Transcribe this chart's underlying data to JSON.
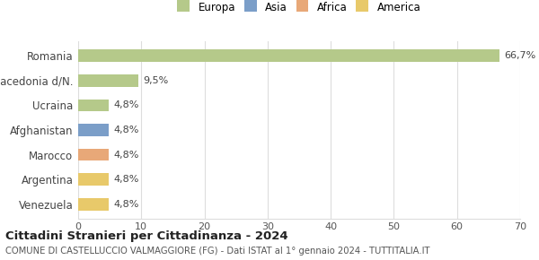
{
  "categories": [
    "Venezuela",
    "Argentina",
    "Marocco",
    "Afghanistan",
    "Ucraina",
    "Macedonia d/N.",
    "Romania"
  ],
  "values": [
    4.8,
    4.8,
    4.8,
    4.8,
    4.8,
    9.5,
    66.7
  ],
  "colors": [
    "#e8c96a",
    "#e8c96a",
    "#e8a878",
    "#7b9ec8",
    "#b5c98a",
    "#b5c98a",
    "#b5c98a"
  ],
  "labels": [
    "4,8%",
    "4,8%",
    "4,8%",
    "4,8%",
    "4,8%",
    "9,5%",
    "66,7%"
  ],
  "xlim": [
    0,
    70
  ],
  "xticks": [
    0,
    10,
    20,
    30,
    40,
    50,
    60,
    70
  ],
  "legend_items": [
    {
      "label": "Europa",
      "color": "#b5c98a"
    },
    {
      "label": "Asia",
      "color": "#7b9ec8"
    },
    {
      "label": "Africa",
      "color": "#e8a878"
    },
    {
      "label": "America",
      "color": "#e8c96a"
    }
  ],
  "title": "Cittadini Stranieri per Cittadinanza - 2024",
  "subtitle": "COMUNE DI CASTELLUCCIO VALMAGGIORE (FG) - Dati ISTAT al 1° gennaio 2024 - TUTTITALIA.IT",
  "background_color": "#ffffff",
  "grid_color": "#dddddd",
  "bar_height": 0.5
}
